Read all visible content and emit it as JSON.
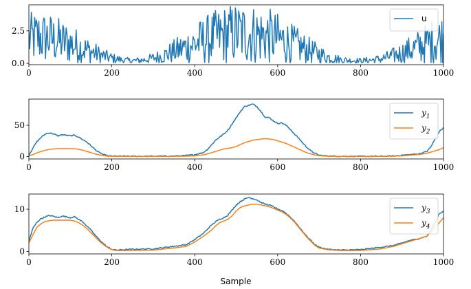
{
  "chart_data": [
    {
      "type": "line",
      "xlabel": "",
      "ylabel": "",
      "xlim": [
        0,
        1000
      ],
      "ylim": [
        -0.1,
        4.5
      ],
      "xticks": [
        0,
        200,
        400,
        600,
        800,
        1000
      ],
      "xtick_labels": [
        "0",
        "200",
        "400",
        "600",
        "800",
        "1000"
      ],
      "yticks": [
        0.0,
        2.5
      ],
      "ytick_labels": [
        "0.0",
        "2.5"
      ],
      "legend_position": "upper-right",
      "series": [
        {
          "name": "u",
          "color": "#1f77b4",
          "x": [
            0,
            25,
            50,
            75,
            100,
            125,
            150,
            175,
            200,
            225,
            250,
            275,
            300,
            325,
            350,
            375,
            400,
            425,
            450,
            475,
            500,
            525,
            550,
            575,
            600,
            625,
            650,
            675,
            700,
            725,
            750,
            775,
            800,
            825,
            850,
            875,
            900,
            925,
            950,
            975,
            1000
          ],
          "y": [
            1.9,
            2.0,
            1.9,
            1.7,
            1.5,
            1.2,
            0.9,
            0.6,
            0.4,
            0.25,
            0.2,
            0.25,
            0.4,
            0.6,
            0.9,
            1.2,
            1.5,
            1.8,
            2.0,
            2.2,
            2.3,
            2.3,
            2.2,
            2.1,
            1.9,
            1.6,
            1.3,
            1.0,
            0.7,
            0.45,
            0.3,
            0.22,
            0.2,
            0.25,
            0.35,
            0.55,
            0.8,
            1.1,
            1.4,
            1.7,
            1.9
          ],
          "amplitude": [
            1.9,
            2.0,
            1.9,
            1.7,
            1.5,
            1.2,
            0.9,
            0.6,
            0.4,
            0.25,
            0.2,
            0.25,
            0.4,
            0.6,
            0.9,
            1.2,
            1.5,
            1.8,
            2.0,
            2.2,
            2.3,
            2.3,
            2.2,
            2.1,
            1.9,
            1.6,
            1.3,
            1.0,
            0.7,
            0.45,
            0.3,
            0.22,
            0.2,
            0.25,
            0.35,
            0.55,
            0.8,
            1.1,
            1.4,
            1.7,
            1.9
          ]
        }
      ]
    },
    {
      "type": "line",
      "xlabel": "",
      "ylabel": "",
      "xlim": [
        0,
        1000
      ],
      "ylim": [
        -4,
        92
      ],
      "xticks": [
        0,
        200,
        400,
        600,
        800,
        1000
      ],
      "xtick_labels": [
        "0",
        "200",
        "400",
        "600",
        "800",
        "1000"
      ],
      "yticks": [
        0,
        50
      ],
      "ytick_labels": [
        "0",
        "50"
      ],
      "legend_position": "upper-right",
      "series": [
        {
          "name": "y",
          "subscript": "1",
          "color": "#1f77b4",
          "x": [
            0,
            10,
            20,
            30,
            40,
            50,
            60,
            70,
            80,
            90,
            100,
            110,
            120,
            130,
            140,
            150,
            160,
            170,
            180,
            190,
            200,
            250,
            300,
            350,
            380,
            400,
            420,
            430,
            440,
            450,
            460,
            470,
            480,
            490,
            500,
            510,
            520,
            530,
            540,
            550,
            560,
            570,
            580,
            590,
            600,
            610,
            620,
            630,
            640,
            650,
            660,
            670,
            680,
            690,
            700,
            720,
            750,
            800,
            850,
            880,
            900,
            920,
            940,
            960,
            970,
            980,
            990,
            1000
          ],
          "y": [
            2,
            14,
            24,
            31,
            36,
            38,
            36,
            33,
            35,
            34,
            33,
            34,
            31,
            27,
            23,
            17,
            11,
            6,
            3,
            1,
            0.5,
            0.3,
            0.4,
            0.6,
            1.5,
            3,
            6,
            11,
            18,
            26,
            31,
            36,
            42,
            52,
            62,
            72,
            80,
            82,
            84,
            80,
            72,
            63,
            62,
            57,
            53,
            54,
            50,
            44,
            36,
            30,
            22,
            15,
            9,
            5,
            2,
            0.8,
            0.3,
            0.2,
            0.3,
            0.8,
            2,
            3,
            4,
            8,
            16,
            28,
            40,
            46
          ]
        },
        {
          "name": "y",
          "subscript": "2",
          "color": "#ff7f0e",
          "x": [
            0,
            10,
            20,
            30,
            40,
            50,
            60,
            70,
            80,
            90,
            100,
            110,
            120,
            130,
            140,
            150,
            160,
            170,
            180,
            190,
            200,
            250,
            300,
            350,
            380,
            400,
            420,
            430,
            440,
            450,
            460,
            470,
            480,
            490,
            500,
            510,
            520,
            530,
            540,
            550,
            560,
            570,
            580,
            590,
            600,
            610,
            620,
            630,
            640,
            650,
            660,
            670,
            680,
            690,
            700,
            720,
            750,
            800,
            850,
            880,
            900,
            920,
            940,
            960,
            970,
            980,
            990,
            1000
          ],
          "y": [
            1,
            3,
            6,
            8,
            10,
            11.5,
            12,
            12.5,
            12.5,
            12.5,
            12.5,
            12.3,
            11.5,
            10,
            8,
            6,
            4,
            2.5,
            1.2,
            0.6,
            0.3,
            0.1,
            0.1,
            0.2,
            0.5,
            1,
            2.5,
            4,
            6,
            8,
            10,
            12,
            13,
            14,
            16,
            19,
            22,
            24,
            26,
            27,
            28,
            28.5,
            28,
            27,
            25,
            23,
            21,
            18,
            15,
            12,
            9,
            6,
            4,
            2.5,
            1.2,
            0.4,
            0.1,
            0.1,
            0.2,
            0.5,
            1,
            2,
            3,
            5,
            7,
            9,
            11,
            14
          ]
        }
      ]
    },
    {
      "type": "line",
      "xlabel": "Sample",
      "ylabel": "",
      "xlim": [
        0,
        1000
      ],
      "ylim": [
        -0.6,
        13.6
      ],
      "xticks": [
        0,
        200,
        400,
        600,
        800,
        1000
      ],
      "xtick_labels": [
        "0",
        "200",
        "400",
        "600",
        "800",
        "1000"
      ],
      "yticks": [
        0,
        10
      ],
      "ytick_labels": [
        "0",
        "10"
      ],
      "legend_position": "upper-right",
      "series": [
        {
          "name": "y",
          "subscript": "3",
          "color": "#1f77b4",
          "x": [
            0,
            10,
            20,
            30,
            40,
            50,
            60,
            70,
            80,
            90,
            100,
            110,
            120,
            130,
            140,
            150,
            160,
            170,
            180,
            190,
            200,
            210,
            250,
            300,
            350,
            380,
            400,
            420,
            440,
            450,
            460,
            470,
            480,
            490,
            500,
            510,
            520,
            530,
            540,
            550,
            560,
            570,
            580,
            590,
            600,
            610,
            620,
            630,
            640,
            650,
            660,
            670,
            680,
            690,
            700,
            720,
            750,
            800,
            850,
            880,
            900,
            920,
            940,
            960,
            970,
            980,
            990,
            1000
          ],
          "y": [
            2.5,
            5.5,
            7,
            7.8,
            8.2,
            8.5,
            8.3,
            8.0,
            8.4,
            8.2,
            8.0,
            8.2,
            7.6,
            7.0,
            6.0,
            5.0,
            3.8,
            2.8,
            1.8,
            1.0,
            0.5,
            0.3,
            0.5,
            0.6,
            1.2,
            1.6,
            2.8,
            4.2,
            6.2,
            7.0,
            7.6,
            8.0,
            8.6,
            9.8,
            11.0,
            11.8,
            12.4,
            12.8,
            12.5,
            12.2,
            11.6,
            11.2,
            11.0,
            10.6,
            10.0,
            9.6,
            9.0,
            8.2,
            7.2,
            6.0,
            4.8,
            3.6,
            2.6,
            1.6,
            1.0,
            0.5,
            0.3,
            0.4,
            1.0,
            1.4,
            2.0,
            2.6,
            3.0,
            3.6,
            5.0,
            7.0,
            9.0,
            9.5
          ]
        },
        {
          "name": "y",
          "subscript": "4",
          "color": "#ff7f0e",
          "x": [
            0,
            10,
            20,
            30,
            40,
            50,
            60,
            70,
            80,
            90,
            100,
            110,
            120,
            130,
            140,
            150,
            160,
            170,
            180,
            190,
            200,
            210,
            250,
            300,
            350,
            380,
            400,
            420,
            440,
            450,
            460,
            470,
            480,
            490,
            500,
            510,
            520,
            530,
            540,
            550,
            560,
            570,
            580,
            590,
            600,
            610,
            620,
            630,
            640,
            650,
            660,
            670,
            680,
            690,
            700,
            720,
            750,
            800,
            850,
            880,
            900,
            920,
            940,
            960,
            970,
            980,
            990,
            1000
          ],
          "y": [
            2,
            4,
            5.8,
            6.6,
            7.1,
            7.3,
            7.4,
            7.4,
            7.4,
            7.4,
            7.4,
            7.2,
            6.8,
            6.2,
            5.4,
            4.4,
            3.4,
            2.4,
            1.6,
            0.9,
            0.4,
            0.2,
            0.2,
            0.3,
            0.8,
            1.2,
            2.2,
            3.5,
            5.0,
            6.0,
            6.8,
            7.2,
            7.6,
            8.4,
            9.6,
            10.4,
            10.8,
            11.0,
            11.2,
            11.2,
            11.0,
            10.8,
            10.6,
            10.2,
            9.8,
            9.4,
            8.8,
            8.0,
            7.0,
            5.8,
            4.6,
            3.4,
            2.4,
            1.4,
            0.8,
            0.4,
            0.2,
            0.2,
            0.6,
            1.2,
            1.8,
            2.4,
            3.0,
            3.6,
            4.6,
            5.6,
            6.8,
            8.0
          ]
        }
      ]
    }
  ]
}
